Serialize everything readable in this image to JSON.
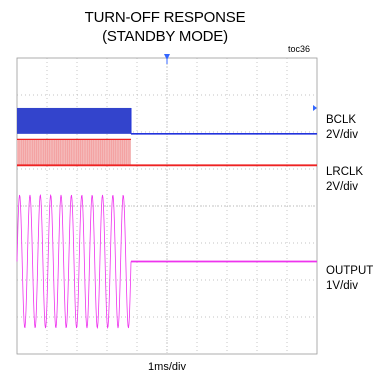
{
  "title": {
    "line1": "TURN-OFF RESPONSE",
    "line2": "(STANDBY MODE)"
  },
  "toc": "toc36",
  "colors": {
    "bclk": "#2233dd",
    "bclk_fill": "#3344cc",
    "lrclk": "#ee2222",
    "lrclk_fill": "#f4b8b8",
    "output": "#ee33ee",
    "grid": "#b0b0b0",
    "marker": "#3366ff"
  },
  "chart_data": {
    "type": "line",
    "xlabel": "1ms/div",
    "x_divisions": 10,
    "y_divisions": 8,
    "turn_off_division": 3.8,
    "series": [
      {
        "name": "BCLK",
        "scale": "2V/div",
        "high_div": 1.35,
        "low_div": 2.05
      },
      {
        "name": "LRCLK",
        "scale": "2V/div",
        "high_div": 2.2,
        "low_div": 2.9
      },
      {
        "name": "OUTPUT",
        "scale": "1V/div",
        "cycles": 11,
        "center_div": 5.5,
        "amplitude_div": 1.8
      }
    ]
  }
}
